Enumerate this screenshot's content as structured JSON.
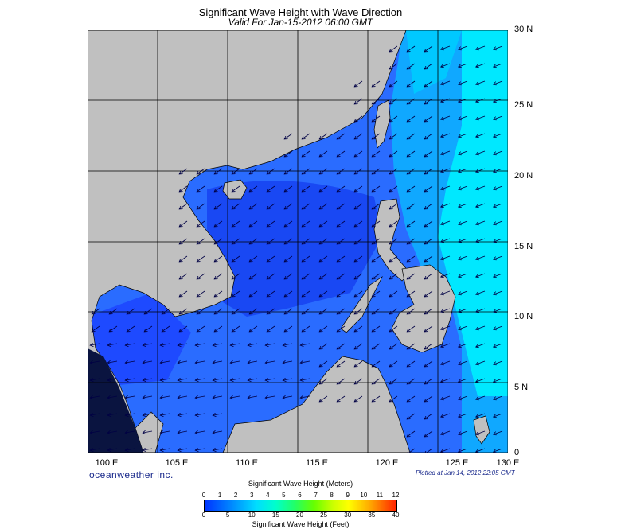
{
  "title": "Significant Wave Height with Wave Direction",
  "subtitle": "Valid For Jan-15-2012 06:00 GMT",
  "lon_labels": [
    "100 E",
    "105 E",
    "110 E",
    "115 E",
    "120 E",
    "125 E",
    "130 E"
  ],
  "lat_labels": [
    "30 N",
    "25 N",
    "20 N",
    "15 N",
    "10 N",
    "5 N",
    "0"
  ],
  "branding": "oceanweather inc.",
  "plotted": "Plotted at Jan 14, 2012 22:05 GMT",
  "colorbar": {
    "title_meters": "Significant Wave Height (Meters)",
    "title_feet": "Significant Wave Height (Feet)",
    "meters_ticks": [
      "0",
      "1",
      "2",
      "3",
      "4",
      "5",
      "6",
      "7",
      "8",
      "9",
      "10",
      "11",
      "12"
    ],
    "feet_ticks": [
      "0",
      "5",
      "10",
      "15",
      "20",
      "25",
      "30",
      "35",
      "40"
    ]
  },
  "colors": {
    "land": "#c0c0c0",
    "ocean_low": "#0030ff",
    "ocean_mid": "#2a6cff",
    "ocean_high": "#00e8ff",
    "arrow": "#000044"
  },
  "wave_direction": "northeast monsoon, waves toward southwest"
}
